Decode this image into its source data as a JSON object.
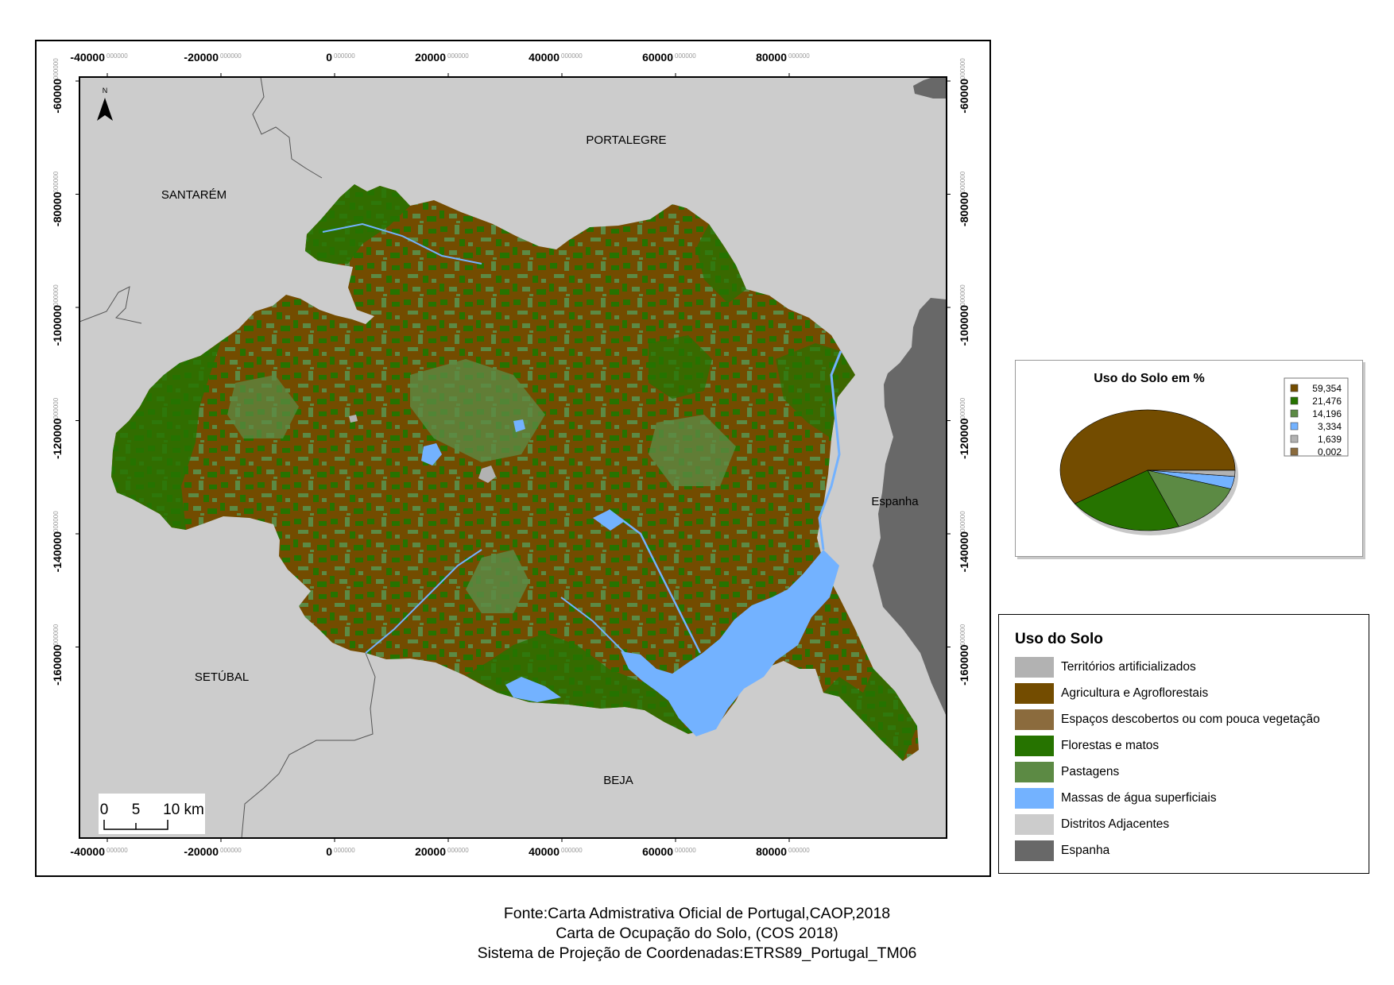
{
  "map": {
    "x_ticks": [
      {
        "value": "-40000",
        "decimals": "000000"
      },
      {
        "value": "-20000",
        "decimals": "000000"
      },
      {
        "value": "0",
        "decimals": "000000"
      },
      {
        "value": "20000",
        "decimals": "000000"
      },
      {
        "value": "40000",
        "decimals": "000000"
      },
      {
        "value": "60000",
        "decimals": "000000"
      },
      {
        "value": "80000",
        "decimals": "000000"
      }
    ],
    "y_ticks": [
      {
        "value": "-60000",
        "decimals": "000000"
      },
      {
        "value": "-80000",
        "decimals": "000000"
      },
      {
        "value": "-100000",
        "decimals": "000000"
      },
      {
        "value": "-120000",
        "decimals": "000000"
      },
      {
        "value": "-140000",
        "decimals": "000000"
      },
      {
        "value": "-160000",
        "decimals": "000000"
      }
    ],
    "regions": {
      "portalegre": "PORTALEGRE",
      "santarem": "SANTARÉM",
      "setubal": "SETÚBAL",
      "beja": "BEJA",
      "espanha": "Espanha"
    },
    "north_arrow": "N",
    "scalebar": {
      "labels": [
        "0",
        "5",
        "10 km"
      ]
    }
  },
  "chart_data": {
    "type": "pie",
    "title": "Uso do Solo em %",
    "values": [
      59.354,
      21.476,
      14.196,
      3.334,
      1.639,
      0.002
    ],
    "labels": [
      "59,354",
      "21,476",
      "14,196",
      "3,334",
      "1,639",
      "0,002"
    ],
    "colors": [
      "#734c00",
      "#267300",
      "#5c8a44",
      "#73b2ff",
      "#b2b2b2",
      "#8b6b3d"
    ]
  },
  "legend": {
    "title": "Uso do Solo",
    "items": [
      {
        "label": "Territórios artificializados",
        "color": "#b2b2b2"
      },
      {
        "label": "Agricultura e Agroflorestais",
        "color": "#734c00"
      },
      {
        "label": "Espaços descobertos ou com pouca vegetação",
        "color": "#8b6b3d"
      },
      {
        "label": "Florestas e matos",
        "color": "#267300"
      },
      {
        "label": "Pastagens",
        "color": "#5c8a44"
      },
      {
        "label": "Massas de água superficiais",
        "color": "#73b2ff"
      },
      {
        "label": "Distritos Adjacentes",
        "color": "#cccccc"
      },
      {
        "label": "Espanha",
        "color": "#686868"
      }
    ]
  },
  "source": [
    "Fonte:Carta Admistrativa Oficial de Portugal,CAOP,2018",
    "Carta de Ocupação do Solo, (COS 2018)",
    "Sistema de Projeção de Coordenadas:ETRS89_Portugal_TM06"
  ]
}
